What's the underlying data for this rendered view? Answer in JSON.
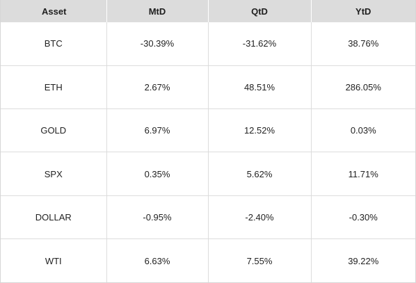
{
  "table": {
    "headers": [
      "Asset",
      "MtD",
      "QtD",
      "YtD"
    ],
    "rows": [
      {
        "asset": "BTC",
        "mtd": "-30.39%",
        "qtd": "-31.62%",
        "ytd": "38.76%"
      },
      {
        "asset": "ETH",
        "mtd": "2.67%",
        "qtd": "48.51%",
        "ytd": "286.05%"
      },
      {
        "asset": "GOLD",
        "mtd": "6.97%",
        "qtd": "12.52%",
        "ytd": "0.03%"
      },
      {
        "asset": "SPX",
        "mtd": "0.35%",
        "qtd": "5.62%",
        "ytd": "11.71%"
      },
      {
        "asset": "DOLLAR",
        "mtd": "-0.95%",
        "qtd": "-2.40%",
        "ytd": "-0.30%"
      },
      {
        "asset": "WTI",
        "mtd": "6.63%",
        "qtd": "7.55%",
        "ytd": "39.22%"
      }
    ]
  },
  "colors": {
    "header_bg": "#dcdcdc",
    "grid_line": "#dcdcdc",
    "text": "#222222"
  }
}
